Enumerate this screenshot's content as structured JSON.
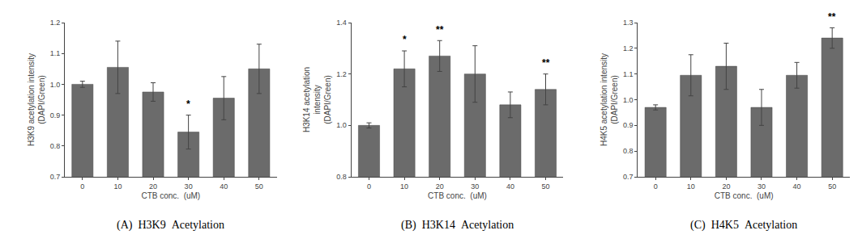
{
  "chart_data": [
    {
      "type": "bar",
      "title": "(A)  H3K9  Acetylation",
      "xlabel": "CTB conc.  (uM)",
      "ylabel": "H3K9 acetylation intensity\n(DAPI/Green)",
      "categories": [
        "0",
        "10",
        "20",
        "30",
        "40",
        "50"
      ],
      "values": [
        1.0,
        1.055,
        0.975,
        0.845,
        0.955,
        1.05
      ],
      "errors": [
        0.01,
        0.085,
        0.03,
        0.055,
        0.07,
        0.08
      ],
      "annotations": [
        {
          "category": "30",
          "text": "*"
        }
      ],
      "color": "#6b6b6b",
      "grid": false,
      "ylim": [
        0.7,
        1.2
      ],
      "yticks": [
        0.7,
        0.8,
        0.9,
        {
          "value": 1.0,
          "label": "1.0"
        },
        1.1,
        1.2
      ]
    },
    {
      "type": "bar",
      "title": "(B)  H3K14  Acetylation",
      "xlabel": "CTB conc.  (uM)",
      "ylabel": "H3K14 acetylation\nintensity\n(DAPI/Green)",
      "categories": [
        "0",
        "10",
        "20",
        "30",
        "40",
        "50"
      ],
      "values": [
        1.0,
        1.22,
        1.27,
        1.2,
        1.08,
        1.14
      ],
      "errors": [
        0.01,
        0.07,
        0.06,
        0.11,
        0.05,
        0.06
      ],
      "annotations": [
        {
          "category": "10",
          "text": "*"
        },
        {
          "category": "20",
          "text": "**"
        },
        {
          "category": "50",
          "text": "**"
        }
      ],
      "color": "#6b6b6b",
      "grid": false,
      "ylim": [
        0.8,
        1.4
      ],
      "yticks": [
        0.8,
        {
          "value": 1.0,
          "label": "1.0"
        },
        1.2,
        1.4
      ]
    },
    {
      "type": "bar",
      "title": "(C)  H4K5  Acetylation",
      "xlabel": "CTB conc.  (uM)",
      "ylabel": "H4K5 acetylation intensity\n(DAPI/Green)",
      "categories": [
        "0",
        "10",
        "20",
        "30",
        "40",
        "50"
      ],
      "values": [
        0.97,
        1.095,
        1.13,
        0.97,
        1.095,
        1.24
      ],
      "errors": [
        0.01,
        0.08,
        0.09,
        0.07,
        0.05,
        0.04
      ],
      "annotations": [
        {
          "category": "50",
          "text": "**"
        }
      ],
      "color": "#6b6b6b",
      "grid": false,
      "ylim": [
        0.7,
        1.3
      ],
      "yticks": [
        0.7,
        0.8,
        0.9,
        {
          "value": 1.0,
          "label": "1.0"
        },
        1.1,
        1.2,
        1.3
      ]
    }
  ]
}
